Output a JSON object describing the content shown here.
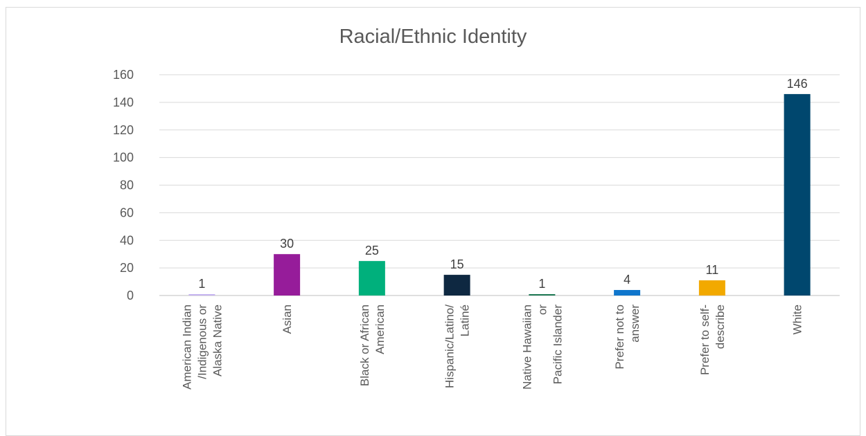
{
  "chart_data": {
    "type": "bar",
    "title": "Racial/Ethnic Identity",
    "categories": [
      [
        "American Indian",
        "/Indigenous or",
        "Alaska Native"
      ],
      [
        "Asian"
      ],
      [
        "Black or African",
        "American"
      ],
      [
        "Hispanic/Latino/",
        "Latiné"
      ],
      [
        "Native Hawaiian",
        "or",
        "Pacific Islander"
      ],
      [
        "Prefer not to",
        "answer"
      ],
      [
        "Prefer to self-",
        "describe"
      ],
      [
        "White"
      ]
    ],
    "values": [
      1,
      30,
      25,
      15,
      1,
      4,
      11,
      146
    ],
    "colors": [
      "#c5b3f0",
      "#961c9a",
      "#00b07c",
      "#0e2841",
      "#1f7a55",
      "#0f76cc",
      "#f2a900",
      "#00476e"
    ],
    "ylim": [
      0,
      160
    ],
    "yticks": [
      0,
      20,
      40,
      60,
      80,
      100,
      120,
      140,
      160
    ],
    "grid": true,
    "legend": "none"
  }
}
